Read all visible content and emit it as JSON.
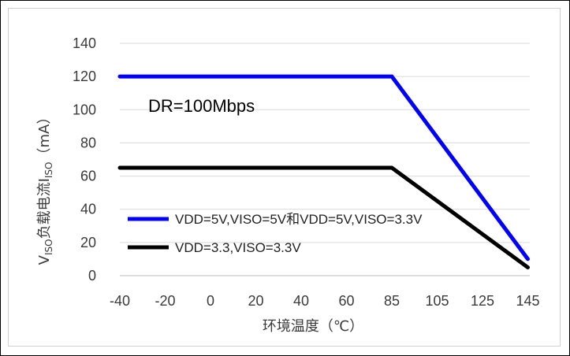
{
  "chart_data": {
    "type": "line",
    "xlabel": "环境温度（℃）",
    "ylabel_parts": {
      "v": "V",
      "v_sub": "ISO",
      "mid": "负载电流I",
      "i_sub": "ISO",
      "unit": "（mA）"
    },
    "x_categories": [
      "-40",
      "-20",
      "0",
      "20",
      "40",
      "60",
      "85",
      "105",
      "125",
      "145"
    ],
    "y_ticks": [
      "0",
      "20",
      "40",
      "60",
      "80",
      "100",
      "120",
      "140"
    ],
    "ylim": [
      0,
      140
    ],
    "grid": "horizontal",
    "annotation": "DR=100Mbps",
    "legend_position": "bottom-left inside",
    "series": [
      {
        "name": "VDD=5V,VISO=5V和VDD=5V,VISO=3.3V",
        "color": "#0000ff",
        "x": [
          -40,
          85,
          145
        ],
        "y": [
          120,
          120,
          10
        ]
      },
      {
        "name": "VDD=3.3,VISO=3.3V",
        "color": "#000000",
        "x": [
          -40,
          85,
          145
        ],
        "y": [
          65,
          65,
          5
        ]
      }
    ]
  }
}
